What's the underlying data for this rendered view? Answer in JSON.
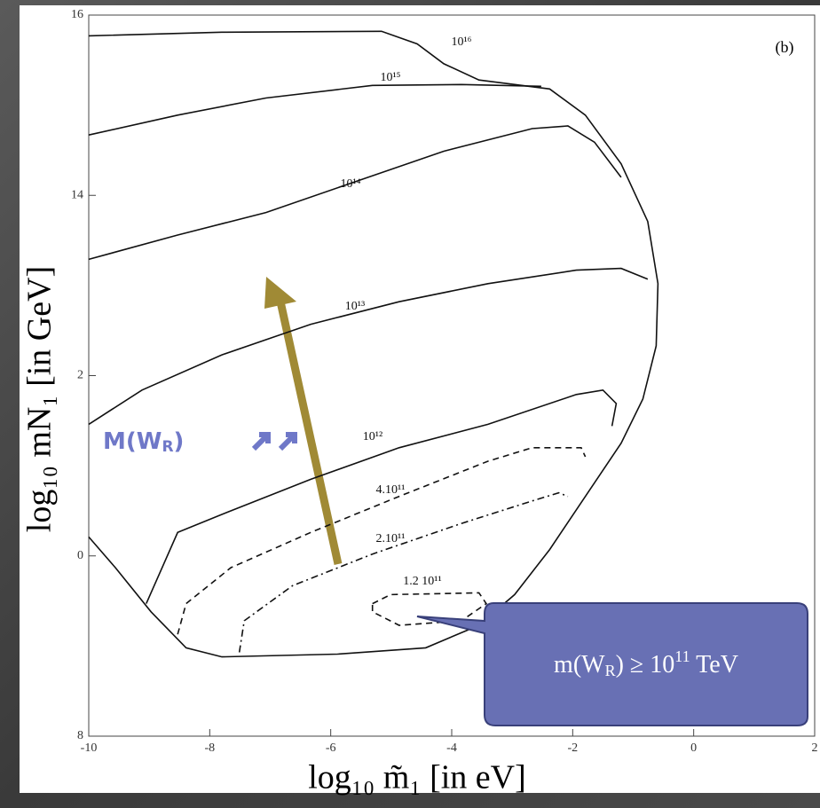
{
  "chart_data": {
    "type": "contour",
    "panel_label": "(b)",
    "x_label": "log₁₀ m̃₁ [in eV]",
    "y_label": "log₁₀ mN₁ [in GeV]",
    "xlim": [
      -10,
      2
    ],
    "ylim": [
      8,
      16
    ],
    "xticks": [
      -10,
      -8,
      -6,
      -4,
      -2,
      0,
      2
    ],
    "yticks": [
      16,
      14,
      {
        "value": 12,
        "label": "2"
      },
      {
        "value": 10,
        "label": "0"
      },
      8
    ],
    "color": "#111111",
    "series": [
      {
        "name": "10¹⁶",
        "dash": "solid",
        "x": [
          -10,
          -7.8,
          -5.16,
          -4.57,
          -4.13,
          -3.55,
          -2.38,
          -1.79,
          -1.2,
          -0.76,
          -0.59,
          -0.62,
          -0.84,
          -1.2,
          -1.79,
          -2.38,
          -2.96,
          -3.55,
          -4.43,
          -5.89,
          -7.8,
          -8.39,
          -8.97,
          -9.56,
          -10
        ],
        "y": [
          15.77,
          15.81,
          15.82,
          15.68,
          15.46,
          15.28,
          15.18,
          14.89,
          14.35,
          13.71,
          13.02,
          12.33,
          11.74,
          11.25,
          10.66,
          10.07,
          9.57,
          9.23,
          8.98,
          8.91,
          8.88,
          8.98,
          9.38,
          9.87,
          10.21
        ]
      },
      {
        "name": "10¹⁵",
        "dash": "solid",
        "x": [
          -10,
          -8.53,
          -7.07,
          -5.31,
          -3.84,
          -2.52
        ],
        "y": [
          14.67,
          14.89,
          15.08,
          15.22,
          15.23,
          15.21
        ]
      },
      {
        "name": "10¹⁴",
        "dash": "solid",
        "x": [
          -10,
          -8.53,
          -7.07,
          -5.6,
          -4.13,
          -2.67,
          -2.08,
          -1.64,
          -1.2
        ],
        "y": [
          13.29,
          13.56,
          13.81,
          14.15,
          14.49,
          14.74,
          14.77,
          14.59,
          14.2
        ]
      },
      {
        "name": "10¹³",
        "dash": "solid",
        "x": [
          -10,
          -9.12,
          -7.8,
          -6.33,
          -4.87,
          -3.4,
          -1.94,
          -1.2,
          -0.76
        ],
        "y": [
          11.46,
          11.84,
          12.23,
          12.57,
          12.82,
          13.02,
          13.17,
          13.19,
          13.07
        ]
      },
      {
        "name": "10¹²",
        "dash": "solid",
        "x": [
          -9.05,
          -8.53,
          -7.8,
          -6.33,
          -4.87,
          -3.4,
          -1.94,
          -1.5,
          -1.28,
          -1.35
        ],
        "y": [
          9.47,
          10.26,
          10.46,
          10.85,
          11.2,
          11.46,
          11.79,
          11.84,
          11.69,
          11.44
        ]
      },
      {
        "name": "4.10¹¹",
        "dash": "dashed",
        "x": [
          -8.53,
          -8.39,
          -7.65,
          -6.33,
          -4.87,
          -3.4,
          -2.67,
          -1.86,
          -1.79
        ],
        "y": [
          9.13,
          9.47,
          9.87,
          10.26,
          10.66,
          11.05,
          11.2,
          11.2,
          11.1
        ]
      },
      {
        "name": "2.10¹¹",
        "dash": "dashdot",
        "x": [
          -7.51,
          -7.43,
          -6.63,
          -5.31,
          -3.84,
          -2.67,
          -2.23,
          -2.08
        ],
        "y": [
          8.93,
          9.28,
          9.67,
          10.02,
          10.36,
          10.61,
          10.7,
          10.66
        ]
      },
      {
        "name": "1.2 10¹¹",
        "dash": "dashed",
        "x": [
          -5.31,
          -5.01,
          -3.55,
          -3.43,
          -3.84,
          -4.87,
          -5.31,
          -5.31
        ],
        "y": [
          9.47,
          9.57,
          9.59,
          9.47,
          9.28,
          9.23,
          9.38,
          9.47
        ]
      }
    ],
    "annotation": {
      "main": "M(W",
      "sub": "R",
      "close": ")"
    },
    "callout": {
      "main": "m(W",
      "sub": "R",
      "mid": ") ≥ 10",
      "sup": "11",
      "tail": " TeV"
    }
  }
}
